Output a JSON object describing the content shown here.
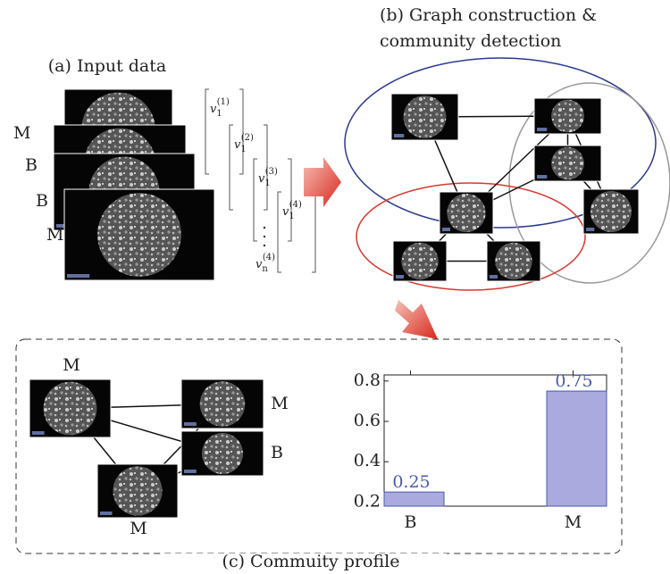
{
  "panel_a": {
    "title": "(a) Input data",
    "labels": [
      "M",
      "B",
      "B",
      "M"
    ],
    "vectors": [
      {
        "base": "v",
        "sub": "1",
        "sup": "(1)"
      },
      {
        "base": "v",
        "sub": "1",
        "sup": "(2)"
      },
      {
        "base": "v",
        "sub": "1",
        "sup": "(3)"
      },
      {
        "base": "v",
        "sub": "1",
        "sup": "(4)"
      }
    ],
    "last_entry": {
      "base": "v",
      "sub": "n",
      "sup": "(4)"
    }
  },
  "panel_b": {
    "title_lines": [
      "(b) Graph construction &",
      "community detection"
    ]
  },
  "panel_c": {
    "title": "(c) Commuity profile",
    "node_labels": [
      "M",
      "M",
      "B",
      "M"
    ]
  },
  "chart_data": {
    "type": "bar",
    "categories": [
      "B",
      "M"
    ],
    "values": [
      0.25,
      0.75
    ],
    "value_labels": [
      "0.25",
      "0.75"
    ],
    "color": "#aaaade",
    "label_color": "#4a5aaa",
    "ylim": [
      0.18,
      0.83
    ],
    "yticks": [
      0.2,
      0.4,
      0.6,
      0.8
    ]
  }
}
